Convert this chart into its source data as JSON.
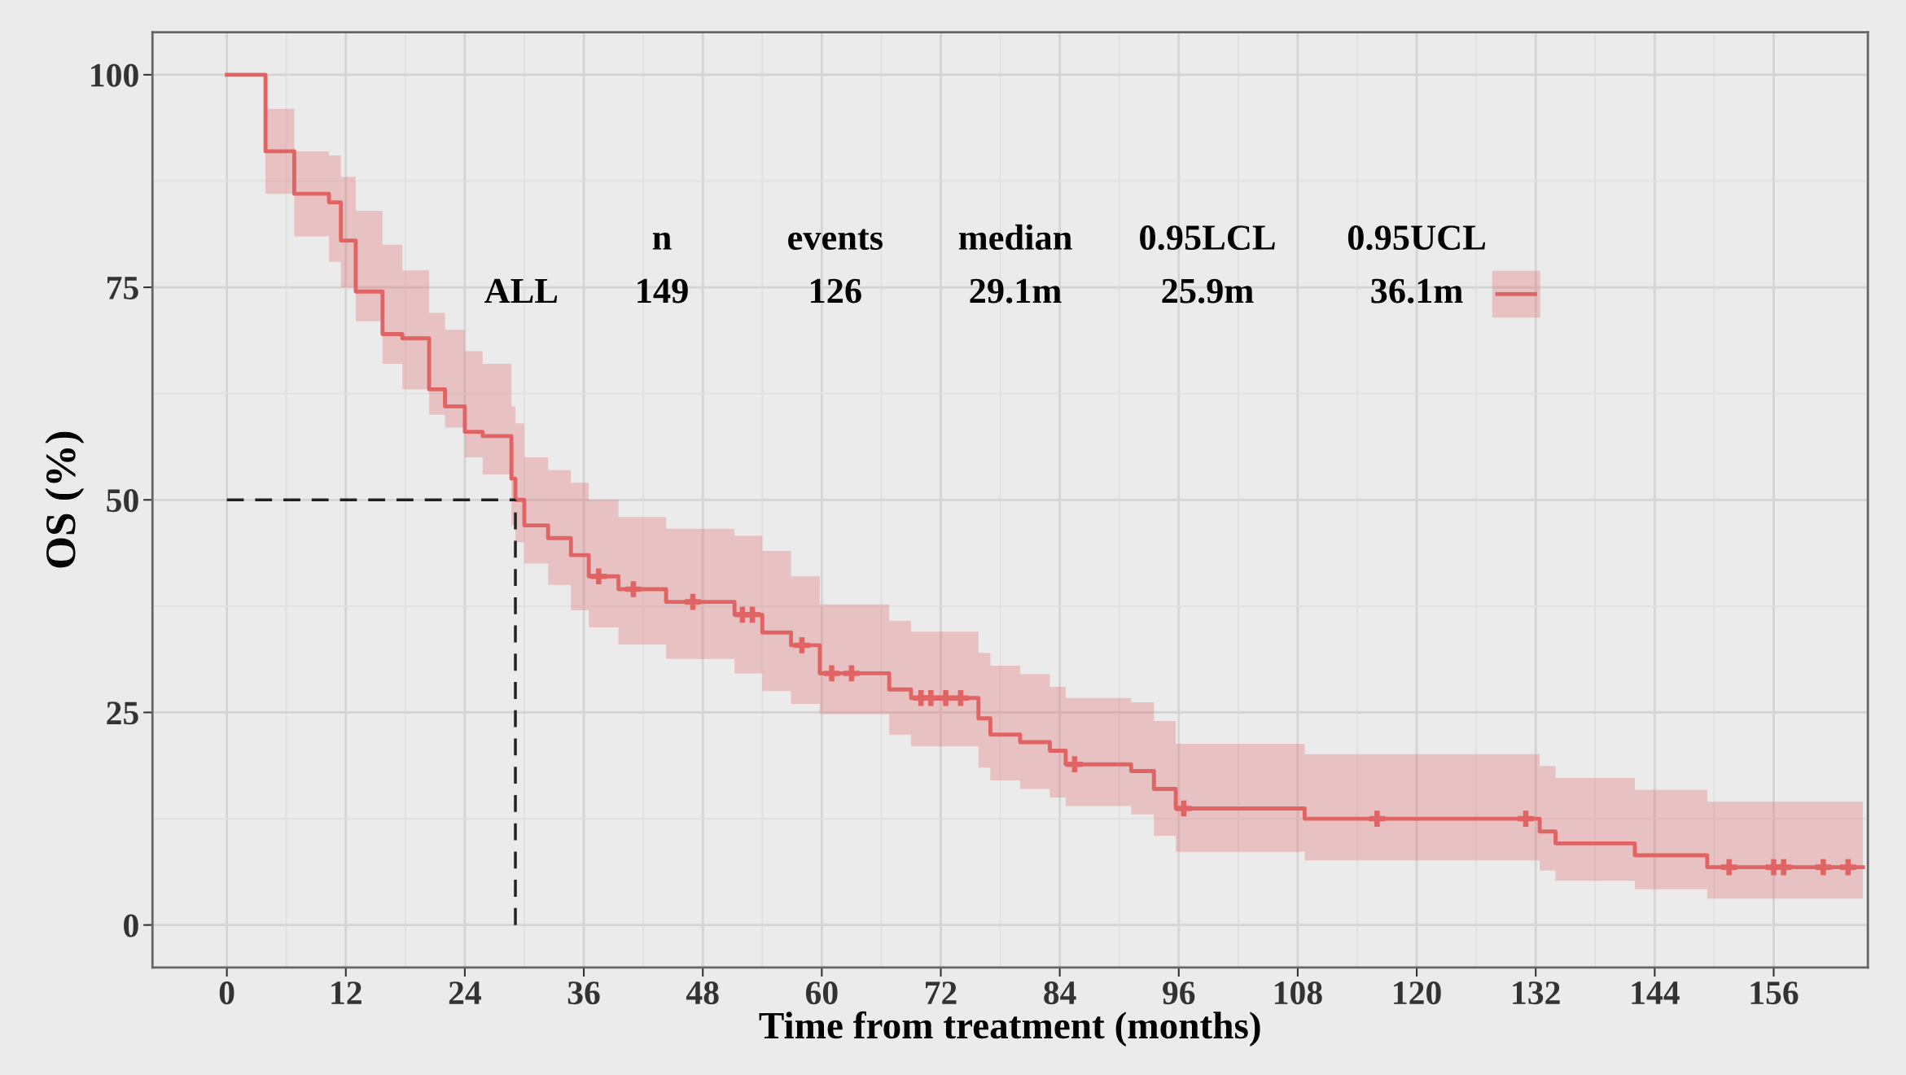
{
  "chart_data": {
    "type": "step",
    "xlabel": "Time from treatment (months)",
    "ylabel": "OS (%)",
    "x": [
      0,
      2.5,
      3.9,
      6.8,
      10.3,
      11.5,
      13,
      15.7,
      17.7,
      20.4,
      22,
      24,
      25.8,
      28.7,
      29.1,
      30,
      32.4,
      34.7,
      36.5,
      39.5,
      44.3,
      51.2,
      54,
      56.9,
      59.8,
      66.8,
      69,
      75.8,
      77,
      80,
      83,
      84.6,
      91.2,
      93.5,
      95.7,
      108.7,
      132.4,
      134,
      142,
      149.3,
      165
    ],
    "series": [
      {
        "name": "ALL",
        "color": "#e06464",
        "values": [
          100,
          100,
          91,
          86,
          85,
          80.5,
          74.5,
          69.5,
          69,
          63,
          61,
          58,
          57.5,
          52.5,
          50,
          47,
          45.5,
          43.5,
          41,
          39.5,
          38,
          36.5,
          34.4,
          32.9,
          29.6,
          27.7,
          26.7,
          24.3,
          22.4,
          21.5,
          20.5,
          18.9,
          18.1,
          16,
          13.7,
          12.5,
          11,
          9.6,
          8.2,
          6.8,
          6.8
        ],
        "lower": [
          100,
          100,
          86,
          81,
          78,
          75,
          71,
          66,
          63,
          60,
          58.5,
          55,
          53,
          47,
          45,
          42.5,
          40,
          37,
          35,
          33,
          31.3,
          29.6,
          27.5,
          26,
          24.8,
          22.4,
          21,
          18.5,
          17,
          16,
          15,
          14,
          13,
          10.5,
          8.6,
          7.6,
          6.4,
          5.2,
          4.2,
          3.1,
          3.1
        ],
        "upper": [
          100,
          100,
          96,
          91,
          90.5,
          88,
          84,
          80,
          77,
          72,
          70,
          67.5,
          66,
          61,
          59,
          55,
          53.5,
          52,
          50,
          48,
          46.6,
          45.8,
          44,
          41,
          37.7,
          35.8,
          34.5,
          32,
          30.5,
          29.5,
          28,
          26.7,
          26.2,
          24,
          21.3,
          20.1,
          18.7,
          17.3,
          15.9,
          14.5,
          14.5
        ]
      },
      {
        "type": "scatter",
        "color": "#e06464",
        "marker": "cross",
        "x": [
          37.5,
          41,
          47,
          52,
          53,
          58,
          61,
          63,
          70,
          71,
          72.5,
          74,
          85.5,
          96.5,
          116,
          131,
          151.5,
          156,
          157,
          161,
          163.5
        ],
        "values": [
          41,
          39.5,
          38,
          36.5,
          36.5,
          32.9,
          29.6,
          29.6,
          26.7,
          26.7,
          26.7,
          26.7,
          18.9,
          13.7,
          12.5,
          12.5,
          6.8,
          6.8,
          6.8,
          6.8,
          6.8
        ]
      }
    ],
    "annotations": [
      "n",
      "events",
      "median",
      "0.95LCL",
      "0.95UCL",
      "149",
      "126",
      "29.1m",
      "25.9m",
      "36.1m"
    ],
    "ref_lines": [
      {
        "axis": "y",
        "value": 50,
        "color": "#222222",
        "line_style": "dashed"
      },
      {
        "axis": "x",
        "value": 29.1,
        "color": "#222222",
        "line_style": "dashed"
      }
    ],
    "xlim": [
      -7.5,
      165.5
    ],
    "ylim": [
      -5,
      105
    ],
    "xticks": [
      0,
      12,
      24,
      36,
      48,
      60,
      72,
      84,
      96,
      108,
      120,
      132,
      144,
      156
    ],
    "yticks": [
      0,
      25,
      50,
      75,
      100
    ],
    "grid": true,
    "legend": "top"
  }
}
